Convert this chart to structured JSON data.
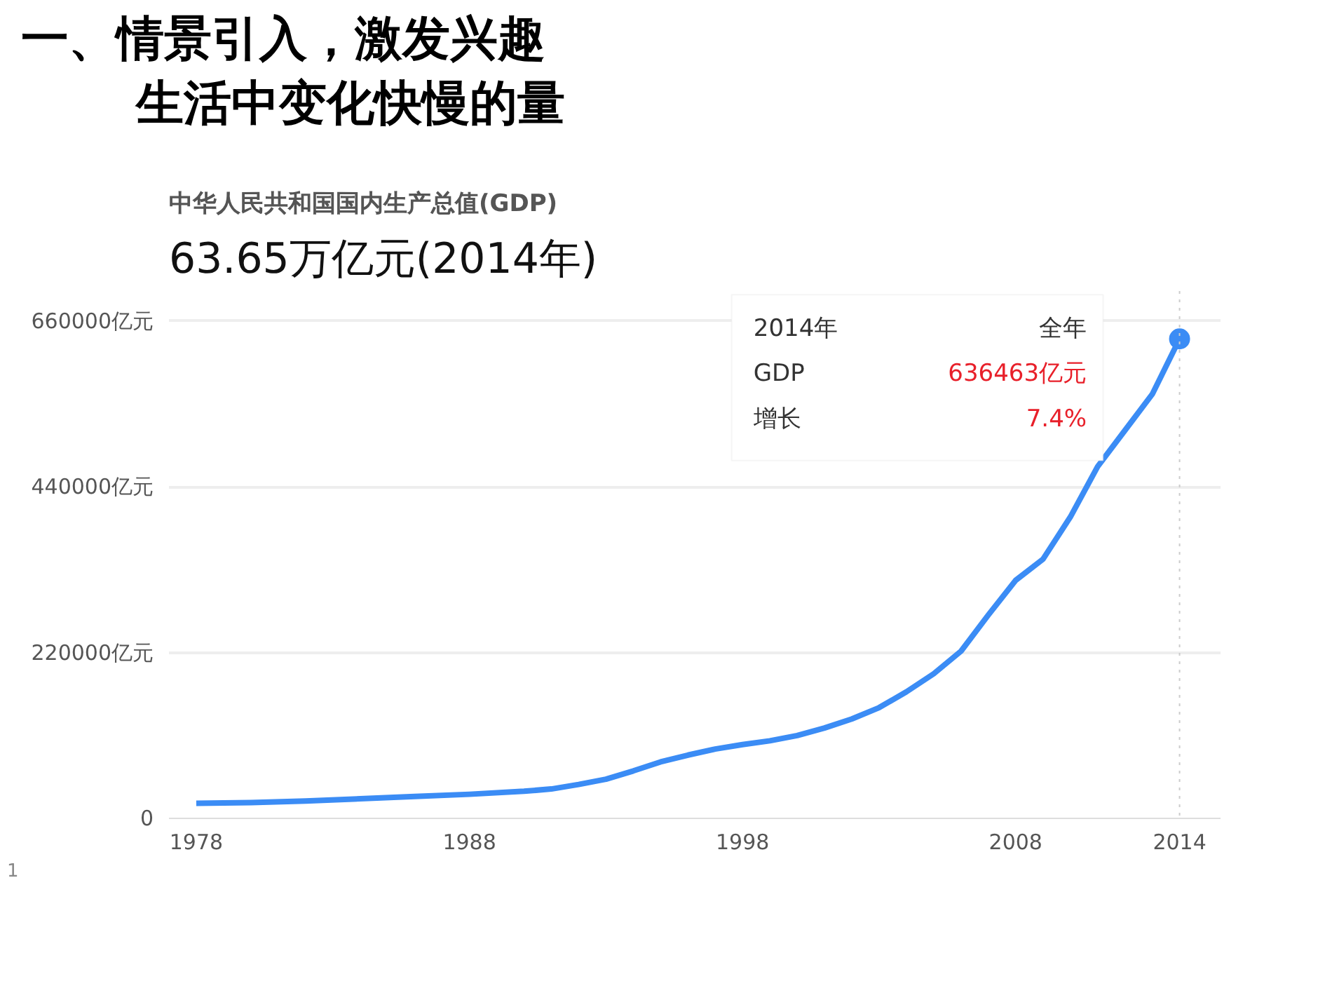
{
  "chart_data": {
    "type": "line",
    "title": "中华人民共和国国内生产总值(GDP)",
    "subtitle": "63.65万亿元(2014年)",
    "x": [
      1978,
      1980,
      1982,
      1984,
      1986,
      1988,
      1990,
      1991,
      1992,
      1993,
      1994,
      1995,
      1996,
      1997,
      1998,
      1999,
      2000,
      2001,
      2002,
      2003,
      2004,
      2005,
      2006,
      2007,
      2008,
      2009,
      2010,
      2011,
      2012,
      2013,
      2014
    ],
    "series": [
      {
        "color": "#3b8cf5",
        "values": [
          20000,
          21000,
          23000,
          26000,
          29000,
          32000,
          36000,
          39000,
          45000,
          52000,
          63000,
          75000,
          84000,
          92000,
          98000,
          103000,
          110000,
          120000,
          132000,
          147000,
          168000,
          192000,
          222000,
          270000,
          316000,
          344000,
          400000,
          467000,
          515000,
          563000,
          636463
        ]
      },
      {
        "type": "scatter",
        "color": "#3b8cf5",
        "marker": "circle",
        "x": [
          2014
        ],
        "values": [
          636463
        ]
      }
    ],
    "xlim": [
      1977,
      2015.5
    ],
    "ylim": [
      0,
      700000
    ],
    "xticks": [
      1978,
      1988,
      1998,
      2008,
      2014
    ],
    "yticks": [
      {
        "value": 0,
        "label": "0"
      },
      {
        "value": 220000,
        "label": "220000亿元"
      },
      {
        "value": 440000,
        "label": "440000亿元"
      },
      {
        "value": 660000,
        "label": "660000亿元"
      }
    ],
    "grid": "y",
    "line_style": "solid",
    "ref_lines": [
      {
        "axis": "x",
        "value": 2014,
        "line_style": "dotted",
        "color": "#cccccc"
      }
    ],
    "annotations": [
      "一、情景引入，激发兴趣",
      "生活中变化快慢的量",
      "2014年",
      "全年",
      "GDP",
      "636463亿元",
      "增长",
      "7.4%",
      "1"
    ]
  }
}
